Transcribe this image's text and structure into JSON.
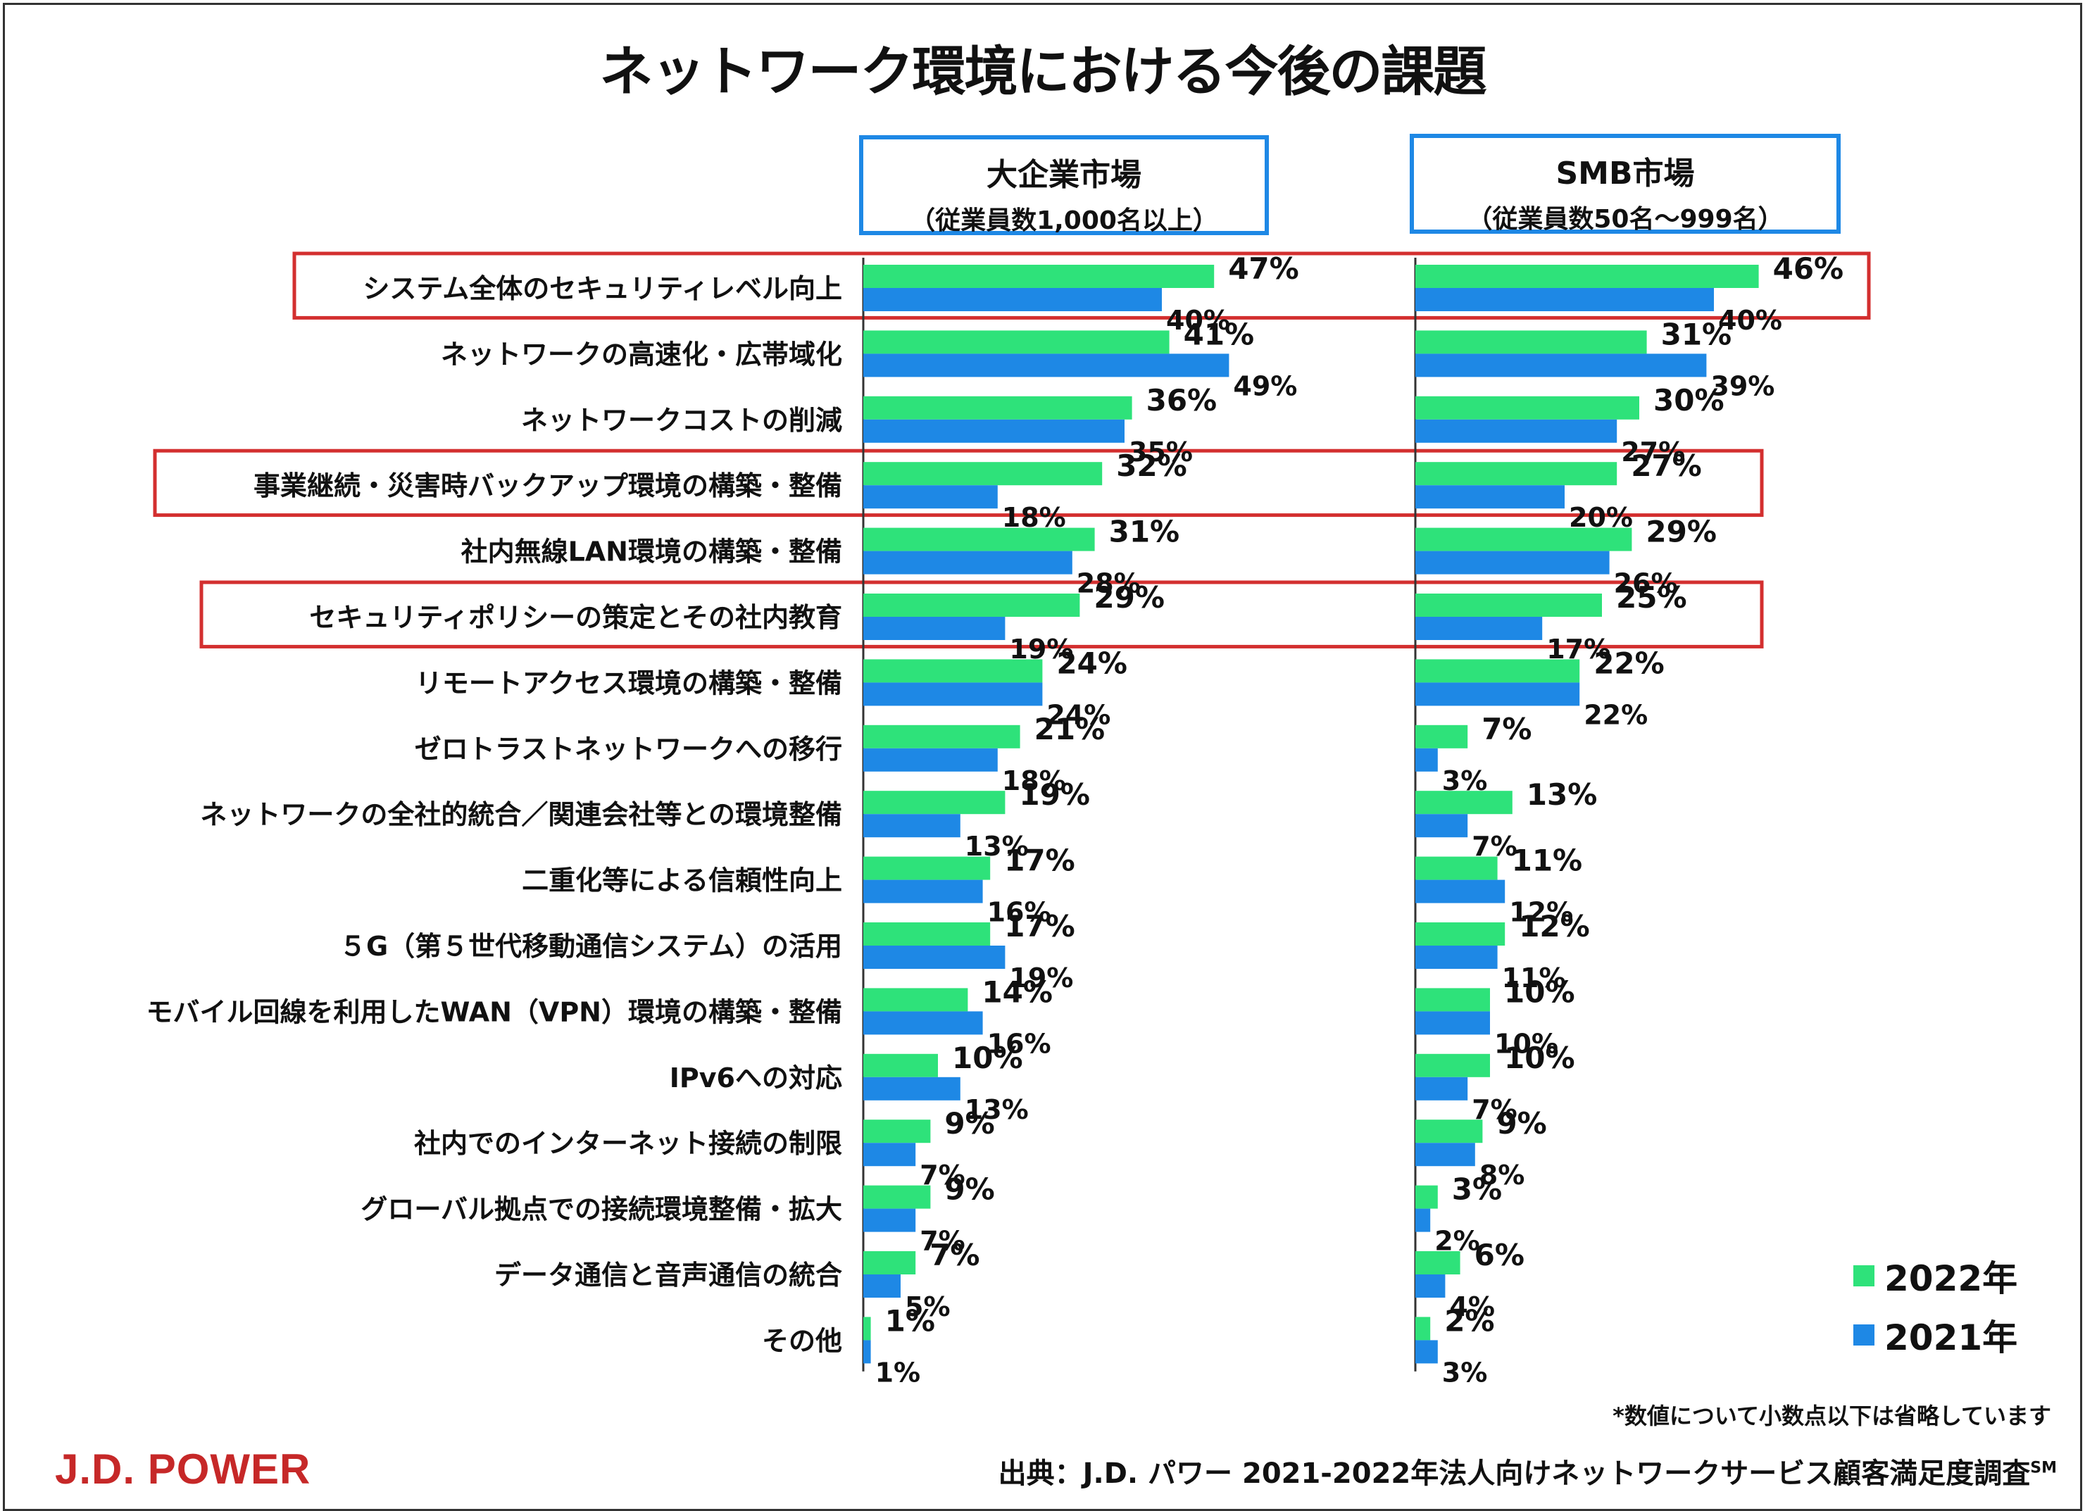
{
  "title": "ネットワーク環境における今後の課題",
  "panels": {
    "large": {
      "title": "大企業市場",
      "subtitle": "（従業員数1,000名以上）"
    },
    "smb": {
      "title": "SMB市場",
      "subtitle": "（従業員数50名～999名）"
    }
  },
  "legend": {
    "y2022": "2022年",
    "y2021": "2021年"
  },
  "colors": {
    "y2022": "#2ee27a",
    "y2021": "#1e88e5",
    "highlight": "#d32f2f",
    "panel_border": "#1e88e5",
    "logo": "#c62828"
  },
  "footnote": "*数値について小数点以下は省略しています",
  "source": "出典：J.D. パワー 2021-2022年法人向けネットワークサービス顧客満足度調査",
  "source_mark": "SM",
  "logo": "J.D. POWER",
  "chart_data": {
    "type": "bar",
    "orientation": "horizontal",
    "categories": [
      "システム全体のセキュリティレベル向上",
      "ネットワークの高速化・広帯域化",
      "ネットワークコストの削減",
      "事業継続・災害時バックアップ環境の構築・整備",
      "社内無線LAN環境の構築・整備",
      "セキュリティポリシーの策定とその社内教育",
      "リモートアクセス環境の構築・整備",
      "ゼロトラストネットワークへの移行",
      "ネットワークの全社的統合／関連会社等との環境整備",
      "二重化等による信頼性向上",
      "５G（第５世代移動通信システム）の活用",
      "モバイル回線を利用したWAN（VPN）環境の構築・整備",
      "IPv6への対応",
      "社内でのインターネット接続の制限",
      "グローバル拠点での接続環境整備・拡大",
      "データ通信と音声通信の統合",
      "その他"
    ],
    "highlighted_categories": [
      0,
      3,
      5
    ],
    "unit": "%",
    "panels": [
      {
        "name": "大企業市場",
        "series": [
          {
            "name": "2022年",
            "values": [
              47,
              41,
              36,
              32,
              31,
              29,
              24,
              21,
              19,
              17,
              17,
              14,
              10,
              9,
              9,
              7,
              1
            ]
          },
          {
            "name": "2021年",
            "values": [
              40,
              49,
              35,
              18,
              28,
              19,
              24,
              18,
              13,
              16,
              19,
              16,
              13,
              7,
              7,
              5,
              1
            ]
          }
        ]
      },
      {
        "name": "SMB市場",
        "series": [
          {
            "name": "2022年",
            "values": [
              46,
              31,
              30,
              27,
              29,
              25,
              22,
              7,
              13,
              11,
              12,
              10,
              10,
              9,
              3,
              6,
              2
            ]
          },
          {
            "name": "2021年",
            "values": [
              40,
              39,
              27,
              20,
              26,
              17,
              22,
              3,
              7,
              12,
              11,
              10,
              7,
              8,
              2,
              4,
              3
            ]
          }
        ]
      }
    ]
  }
}
